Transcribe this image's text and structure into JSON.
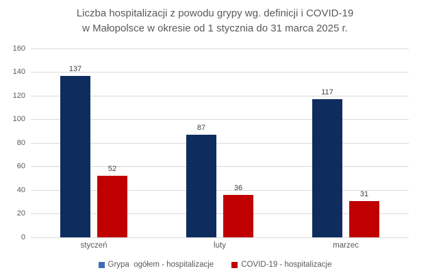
{
  "title": {
    "line1": "Liczba hospitalizacji z powodu grypy wg. definicji i COVID-19",
    "line2": "w Małopolsce w okresie od 1 stycznia do 31 marca 2025 r."
  },
  "colors": {
    "title_text": "#595959",
    "axis_text": "#595959",
    "value_label_text": "#404040",
    "gridline": "#d9d9d9",
    "series_grypa_bar": "#0f2c5f",
    "series_grypa_legend_marker": "#3e6db5",
    "series_covid_bar": "#c00000",
    "series_covid_legend_marker": "#c00000",
    "background": "#ffffff"
  },
  "chart_data": {
    "type": "bar",
    "title": "Liczba hospitalizacji z powodu grypy wg. definicji i COVID-19 w Małopolsce w okresie od 1 stycznia do 31 marca 2025 r.",
    "categories": [
      "styczeń",
      "luty",
      "marzec"
    ],
    "series": [
      {
        "name": "Grypa  ogółem - hospitalizacje",
        "values": [
          137,
          87,
          117
        ],
        "bar_color": "#0f2c5f",
        "legend_color": "#3e6db5"
      },
      {
        "name": "COVID-19 - hospitalizacje",
        "values": [
          52,
          36,
          31
        ],
        "bar_color": "#c00000",
        "legend_color": "#c00000"
      }
    ],
    "xlabel": "",
    "ylabel": "",
    "ylim": [
      0,
      160
    ],
    "yticks": [
      0,
      20,
      40,
      60,
      80,
      100,
      120,
      140,
      160
    ],
    "grid": true,
    "data_labels": true,
    "legend_position": "bottom"
  }
}
